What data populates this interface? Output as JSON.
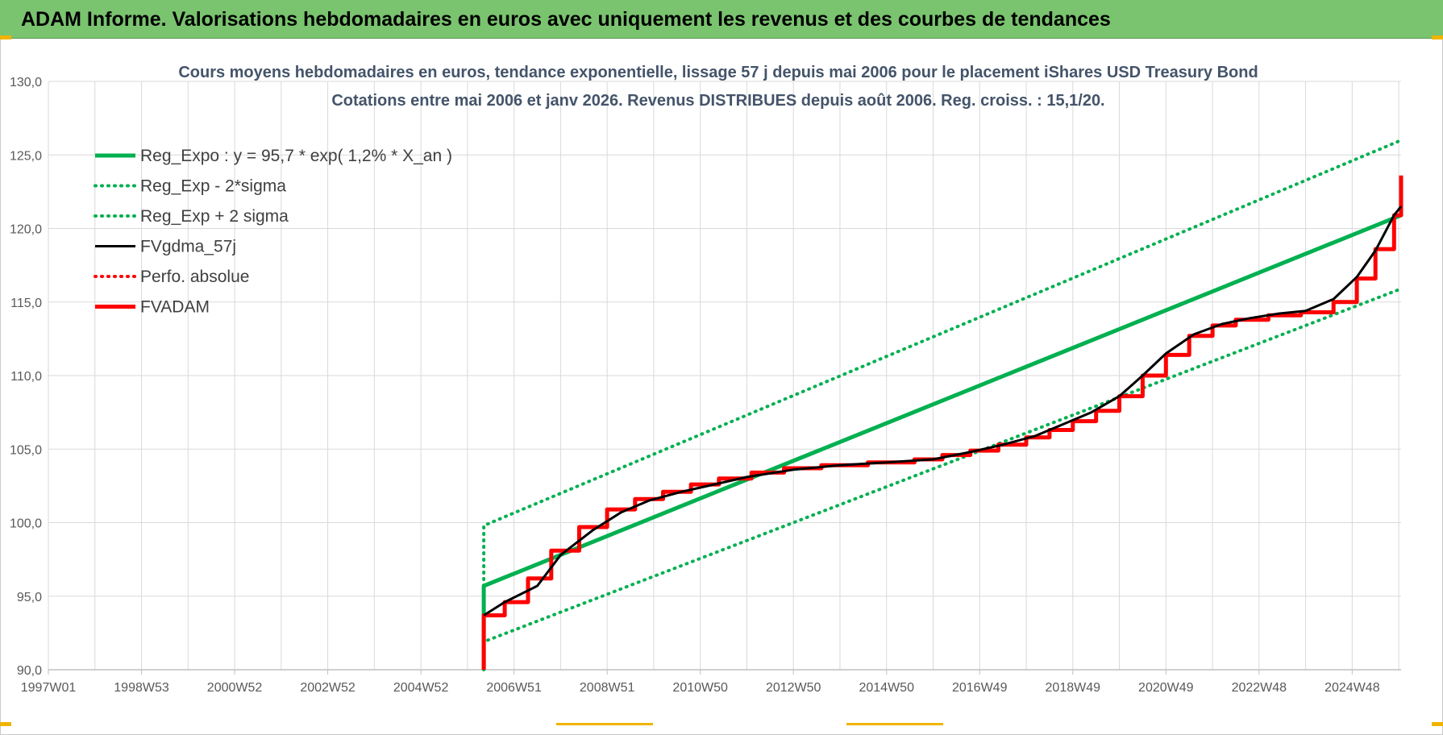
{
  "header": {
    "title": "ADAM Informe. Valorisations hebdomadaires en euros avec uniquement les revenus et des courbes de tendances"
  },
  "chart_data": {
    "type": "line",
    "title_line1": "Cours moyens hebdomadaires en euros, tendance exponentielle, lissage 57 j depuis mai 2006 pour le placement iShares USD Treasury Bond",
    "title_line2": "Cotations entre mai 2006 et janv 2026. Revenus DISTRIBUES depuis août 2006. Reg. croiss. : 15,1/20.",
    "xlabel": "",
    "ylabel": "",
    "x_tick_labels": [
      "1997W01",
      "1998W53",
      "2000W52",
      "2002W52",
      "2004W52",
      "2006W51",
      "2008W51",
      "2010W50",
      "2012W50",
      "2014W50",
      "2016W49",
      "2018W49",
      "2020W49",
      "2022W48",
      "2024W48"
    ],
    "x_range_years": [
      1997.0,
      2026.05
    ],
    "ylim": [
      90,
      130
    ],
    "y_ticks": [
      "90,0",
      "95,0",
      "100,0",
      "105,0",
      "110,0",
      "115,0",
      "120,0",
      "125,0",
      "130,0"
    ],
    "grid": true,
    "legend_position": "top-left",
    "colors": {
      "green": "#00b050",
      "black": "#000000",
      "red": "#ff0000"
    },
    "series": [
      {
        "name": "Reg_Expo : y = 95,7 * exp( 1,2% *  X_an )",
        "style": "solid",
        "color": "#00b050",
        "points": [
          [
            2006.35,
            90.0
          ],
          [
            2006.35,
            95.7
          ],
          [
            2026.05,
            120.9
          ]
        ]
      },
      {
        "name": "Reg_Exp - 2*sigma",
        "style": "dotted",
        "color": "#00b050",
        "points": [
          [
            2006.35,
            90.0
          ],
          [
            2006.35,
            91.9
          ],
          [
            2026.05,
            115.9
          ]
        ]
      },
      {
        "name": "Reg_Exp + 2 sigma",
        "style": "dotted",
        "color": "#00b050",
        "points": [
          [
            2006.35,
            90.0
          ],
          [
            2006.35,
            99.8
          ],
          [
            2026.05,
            126.0
          ]
        ]
      },
      {
        "name": "FVgdma_57j",
        "style": "solid",
        "color": "#000000",
        "points": [
          [
            2006.35,
            93.7
          ],
          [
            2006.8,
            94.6
          ],
          [
            2007.5,
            95.7
          ],
          [
            2008.0,
            97.8
          ],
          [
            2008.7,
            99.5
          ],
          [
            2009.3,
            100.7
          ],
          [
            2009.9,
            101.5
          ],
          [
            2010.6,
            102.1
          ],
          [
            2011.3,
            102.6
          ],
          [
            2012.0,
            103.1
          ],
          [
            2013.0,
            103.6
          ],
          [
            2014.0,
            103.9
          ],
          [
            2015.0,
            104.1
          ],
          [
            2016.0,
            104.3
          ],
          [
            2016.8,
            104.8
          ],
          [
            2017.5,
            105.3
          ],
          [
            2018.2,
            105.9
          ],
          [
            2018.8,
            106.7
          ],
          [
            2019.4,
            107.5
          ],
          [
            2020.0,
            108.6
          ],
          [
            2020.5,
            110.0
          ],
          [
            2021.0,
            111.5
          ],
          [
            2021.6,
            112.8
          ],
          [
            2022.2,
            113.5
          ],
          [
            2022.8,
            113.9
          ],
          [
            2023.4,
            114.2
          ],
          [
            2024.0,
            114.4
          ],
          [
            2024.6,
            115.2
          ],
          [
            2025.1,
            116.7
          ],
          [
            2025.5,
            118.5
          ],
          [
            2025.9,
            120.9
          ],
          [
            2026.05,
            121.5
          ]
        ],
        "_note_ignore": ""
      },
      {
        "name": "Perfo. absolue",
        "style": "dotted",
        "color": "#ff0000",
        "points": []
      },
      {
        "name": "FVADAM",
        "style": "step",
        "color": "#ff0000",
        "points": [
          [
            2006.35,
            90.0
          ],
          [
            2006.35,
            93.7
          ],
          [
            2006.8,
            94.6
          ],
          [
            2007.3,
            96.2
          ],
          [
            2007.8,
            98.1
          ],
          [
            2008.4,
            99.7
          ],
          [
            2009.0,
            100.9
          ],
          [
            2009.6,
            101.6
          ],
          [
            2010.2,
            102.1
          ],
          [
            2010.8,
            102.6
          ],
          [
            2011.4,
            103.0
          ],
          [
            2012.1,
            103.4
          ],
          [
            2012.8,
            103.7
          ],
          [
            2013.6,
            103.9
          ],
          [
            2014.6,
            104.1
          ],
          [
            2015.6,
            104.3
          ],
          [
            2016.2,
            104.6
          ],
          [
            2016.8,
            104.9
          ],
          [
            2017.4,
            105.3
          ],
          [
            2018.0,
            105.8
          ],
          [
            2018.5,
            106.3
          ],
          [
            2019.0,
            106.9
          ],
          [
            2019.5,
            107.6
          ],
          [
            2020.0,
            108.6
          ],
          [
            2020.5,
            110.0
          ],
          [
            2021.0,
            111.4
          ],
          [
            2021.5,
            112.7
          ],
          [
            2022.0,
            113.4
          ],
          [
            2022.5,
            113.8
          ],
          [
            2023.2,
            114.1
          ],
          [
            2023.9,
            114.3
          ],
          [
            2024.6,
            115.0
          ],
          [
            2025.1,
            116.6
          ],
          [
            2025.5,
            118.6
          ],
          [
            2025.9,
            120.9
          ],
          [
            2026.05,
            123.6
          ]
        ]
      }
    ]
  }
}
